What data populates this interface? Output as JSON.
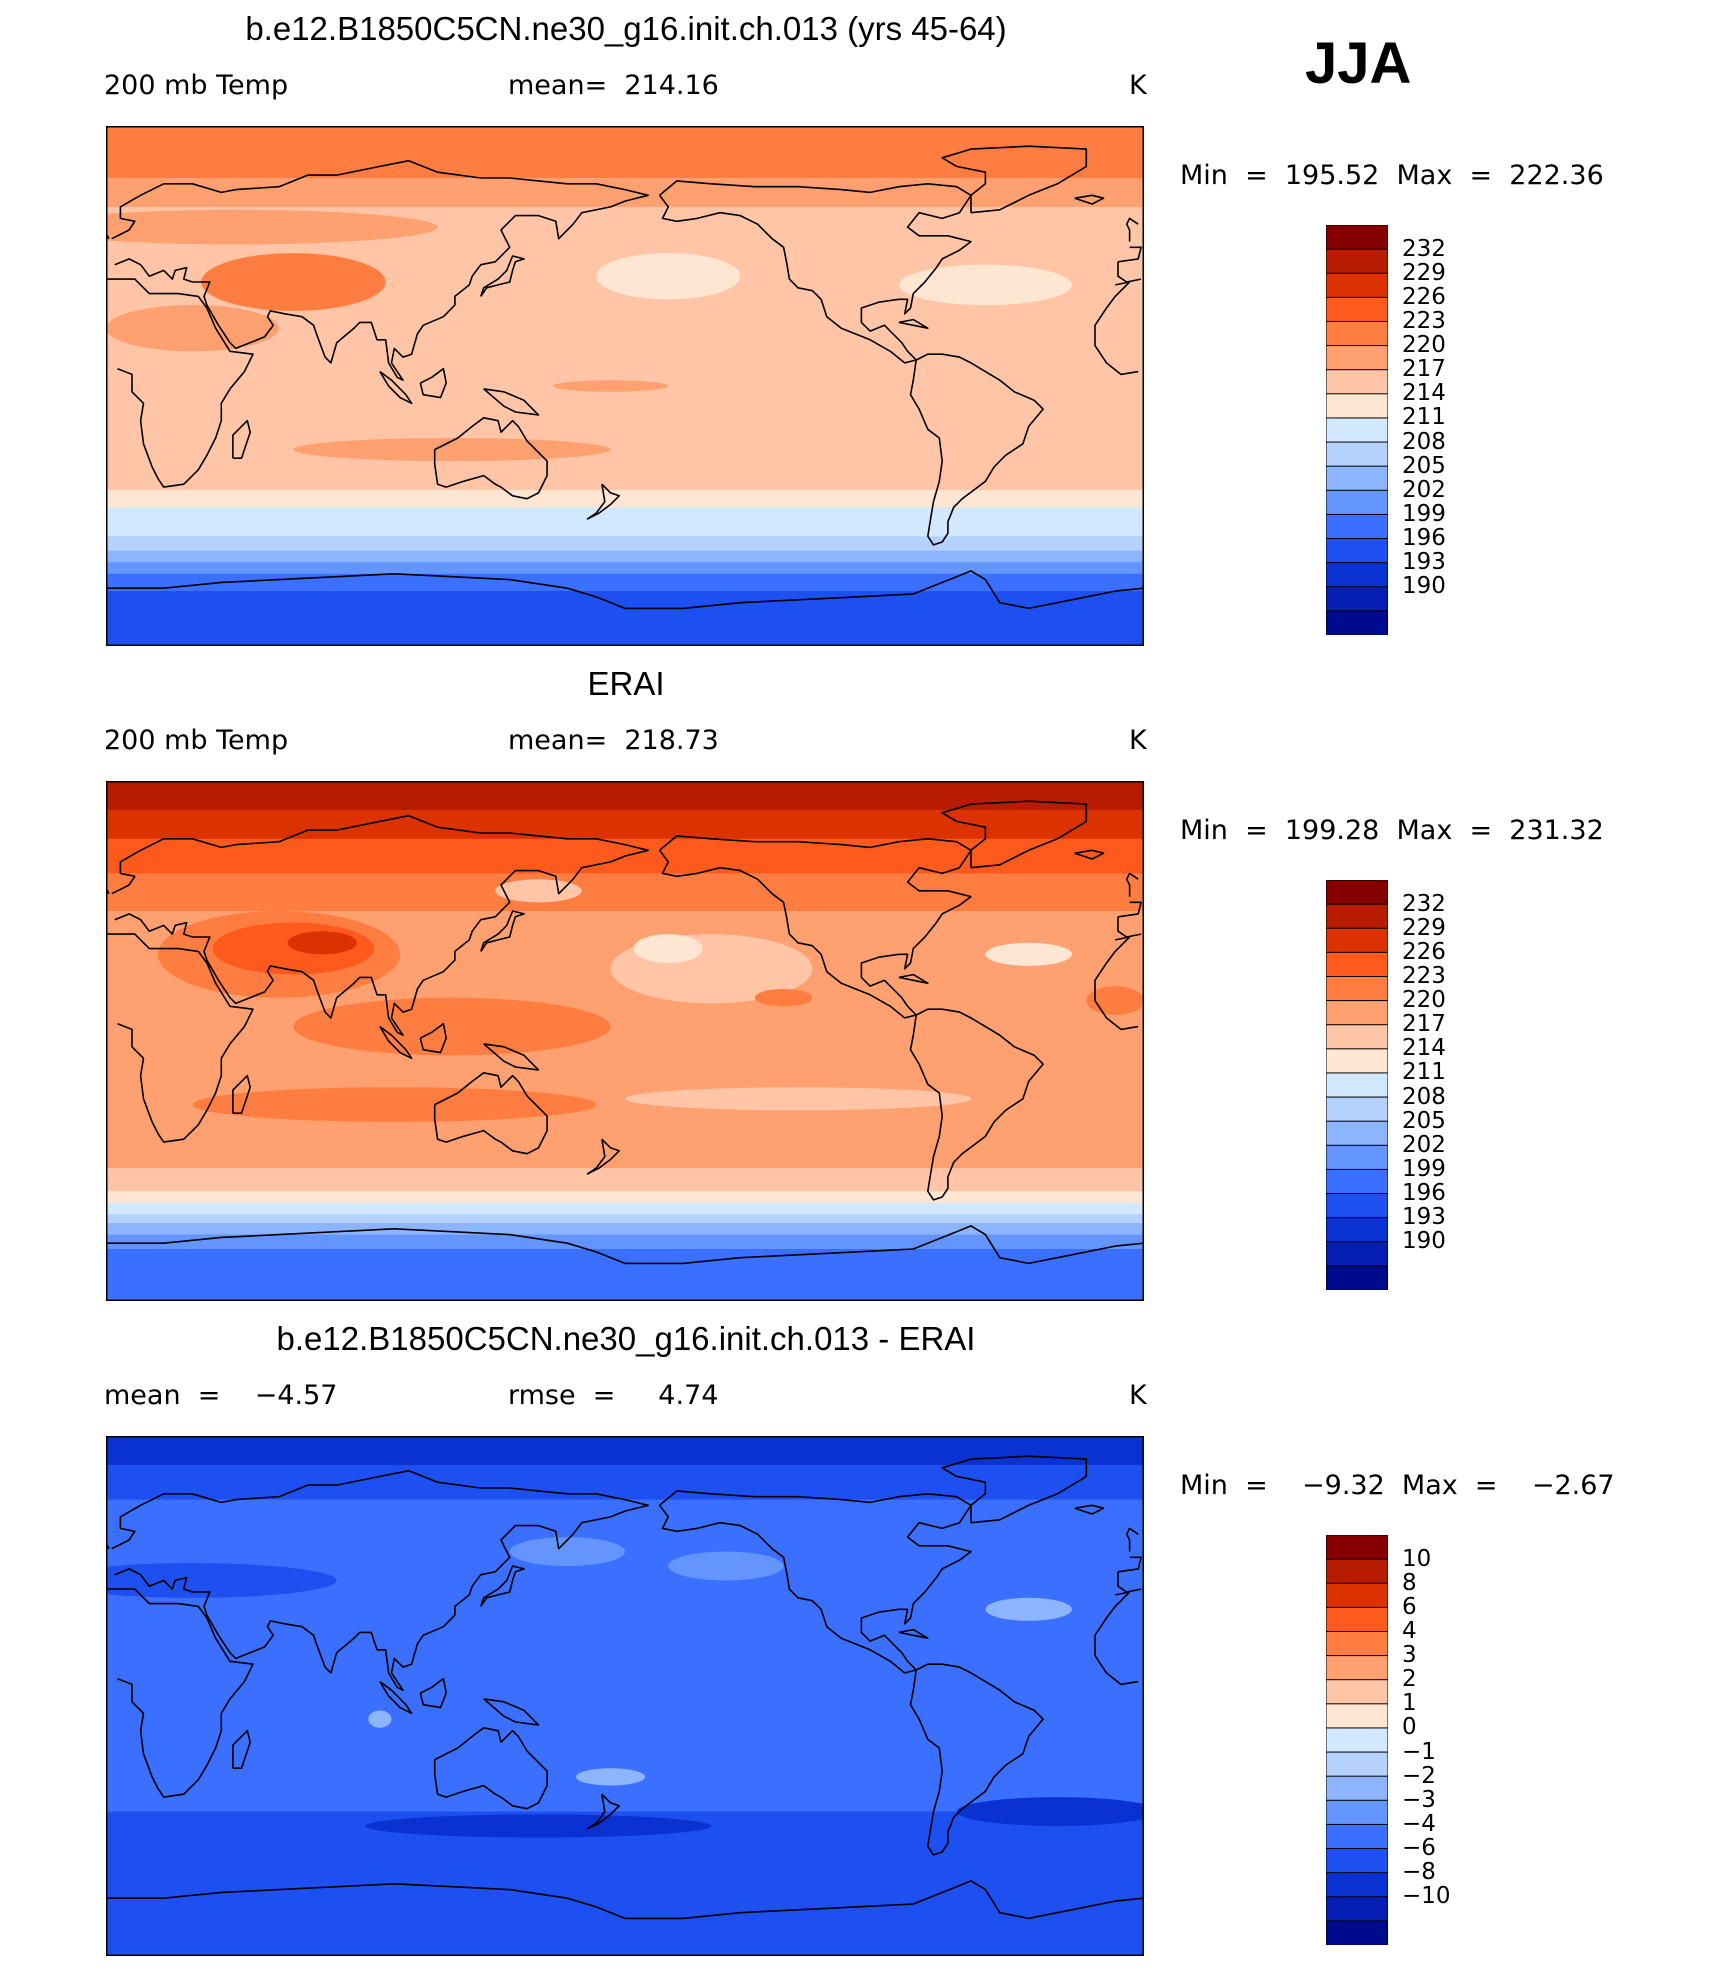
{
  "season": "JJA",
  "colorbars": {
    "temp": {
      "colors": [
        "#870000",
        "#b81c00",
        "#dc3200",
        "#ff5a1e",
        "#ff7d40",
        "#ffa070",
        "#ffc5a6",
        "#ffe6d2",
        "#d2e8ff",
        "#b5d2ff",
        "#8cb4ff",
        "#6495ff",
        "#3a6fff",
        "#1e4ff0",
        "#0a32d2",
        "#051eb4",
        "#000a8c"
      ],
      "labels": [
        "232",
        "229",
        "226",
        "223",
        "220",
        "217",
        "214",
        "211",
        "208",
        "205",
        "202",
        "199",
        "196",
        "193",
        "190"
      ]
    },
    "diff": {
      "colors": [
        "#870000",
        "#b81c00",
        "#dc3200",
        "#ff5a1e",
        "#ff7d40",
        "#ffa070",
        "#ffc5a6",
        "#ffe6d2",
        "#d2e8ff",
        "#b5d2ff",
        "#8cb4ff",
        "#6495ff",
        "#3a6fff",
        "#1e4ff0",
        "#0a32d2",
        "#051eb4",
        "#000a8c"
      ],
      "labels": [
        "10",
        "8",
        "6",
        "4",
        "3",
        "2",
        "1",
        "0",
        "−1",
        "−2",
        "−3",
        "−4",
        "−6",
        "−8",
        "−10"
      ]
    }
  },
  "panels": [
    {
      "title": "b.e12.B1850C5CN.ne30_g16.init.ch.013 (yrs 45-64)",
      "left_label": "200 mb Temp",
      "mid_label": "mean=  214.16",
      "unit": "K",
      "minmax": "Min  =  195.52  Max  =  222.36",
      "colorbar": "temp",
      "bands": [
        {
          "lat": 90,
          "color": "#ff7d40"
        },
        {
          "lat": 72,
          "color": "#ffa070"
        },
        {
          "lat": 62,
          "color": "#ffc5a6"
        },
        {
          "lat": -27,
          "color": "#ffc5a6"
        },
        {
          "lat": -36,
          "color": "#ffe6d2"
        },
        {
          "lat": -42,
          "color": "#d2e8ff"
        },
        {
          "lat": -52,
          "color": "#b5d2ff"
        },
        {
          "lat": -57,
          "color": "#8cb4ff"
        },
        {
          "lat": -61,
          "color": "#6495ff"
        },
        {
          "lat": -65,
          "color": "#3a6fff"
        },
        {
          "lat": -71,
          "color": "#1e4ff0"
        },
        {
          "lat": -90,
          "color": "#1e4ff0"
        }
      ],
      "blobs": [
        {
          "lon": 65,
          "lat": 36,
          "rlon": 32,
          "rlat": 10,
          "color": "#ff7d40"
        },
        {
          "lon": 45,
          "lat": 55,
          "rlon": 70,
          "rlat": 6,
          "color": "#ffa070"
        },
        {
          "lon": 195,
          "lat": 38,
          "rlon": 25,
          "rlat": 8,
          "color": "#ffe6d2"
        },
        {
          "lon": 305,
          "lat": 35,
          "rlon": 30,
          "rlat": 7,
          "color": "#ffe6d2"
        },
        {
          "lon": 120,
          "lat": -22,
          "rlon": 55,
          "rlat": 4,
          "color": "#ffa070"
        },
        {
          "lon": 175,
          "lat": 0,
          "rlon": 20,
          "rlat": 2,
          "color": "#ffa070"
        },
        {
          "lon": 30,
          "lat": 20,
          "rlon": 30,
          "rlat": 8,
          "color": "#ffa070"
        }
      ]
    },
    {
      "title": "ERAI",
      "left_label": "200 mb Temp",
      "mid_label": "mean=  218.73",
      "unit": "K",
      "minmax": "Min  =  199.28  Max  =  231.32",
      "colorbar": "temp",
      "bands": [
        {
          "lat": 90,
          "color": "#b81c00"
        },
        {
          "lat": 80,
          "color": "#dc3200"
        },
        {
          "lat": 70,
          "color": "#ff5a1e"
        },
        {
          "lat": 58,
          "color": "#ff7d40"
        },
        {
          "lat": 45,
          "color": "#ffa070"
        },
        {
          "lat": -40,
          "color": "#ffa070"
        },
        {
          "lat": -44,
          "color": "#ffc5a6"
        },
        {
          "lat": -52,
          "color": "#ffe6d2"
        },
        {
          "lat": -56,
          "color": "#d2e8ff"
        },
        {
          "lat": -60,
          "color": "#b5d2ff"
        },
        {
          "lat": -63,
          "color": "#8cb4ff"
        },
        {
          "lat": -67,
          "color": "#6495ff"
        },
        {
          "lat": -72,
          "color": "#3a6fff"
        },
        {
          "lat": -90,
          "color": "#3a6fff"
        }
      ],
      "blobs": [
        {
          "lon": 60,
          "lat": 30,
          "rlon": 42,
          "rlat": 15,
          "color": "#ff7d40"
        },
        {
          "lon": 65,
          "lat": 32,
          "rlon": 28,
          "rlat": 9,
          "color": "#ff5a1e"
        },
        {
          "lon": 75,
          "lat": 34,
          "rlon": 12,
          "rlat": 4,
          "color": "#dc3200"
        },
        {
          "lon": 120,
          "lat": 5,
          "rlon": 55,
          "rlat": 10,
          "color": "#ff7d40"
        },
        {
          "lon": 100,
          "lat": -22,
          "rlon": 70,
          "rlat": 6,
          "color": "#ff7d40"
        },
        {
          "lon": 210,
          "lat": 25,
          "rlon": 35,
          "rlat": 12,
          "color": "#ffc5a6"
        },
        {
          "lon": 195,
          "lat": 32,
          "rlon": 12,
          "rlat": 5,
          "color": "#ffe6d2"
        },
        {
          "lon": 320,
          "lat": 30,
          "rlon": 15,
          "rlat": 4,
          "color": "#ffe6d2"
        },
        {
          "lon": 150,
          "lat": 52,
          "rlon": 15,
          "rlat": 4,
          "color": "#ffc5a6"
        },
        {
          "lon": 235,
          "lat": 15,
          "rlon": 10,
          "rlat": 3,
          "color": "#ff7d40"
        },
        {
          "lon": 350,
          "lat": 14,
          "rlon": 10,
          "rlat": 5,
          "color": "#ff7d40"
        },
        {
          "lon": 240,
          "lat": -20,
          "rlon": 60,
          "rlat": 4,
          "color": "#ffc5a6"
        }
      ]
    },
    {
      "title": "b.e12.B1850C5CN.ne30_g16.init.ch.013 - ERAI",
      "left_label": "mean  =    −4.57",
      "mid_label": "rmse  =     4.74",
      "unit": "K",
      "minmax": "Min  =    −9.32  Max  =    −2.67",
      "colorbar": "diff",
      "bands": [
        {
          "lat": 90,
          "color": "#0a32d2"
        },
        {
          "lat": 80,
          "color": "#1e4ff0"
        },
        {
          "lat": 68,
          "color": "#3a6fff"
        },
        {
          "lat": -28,
          "color": "#3a6fff"
        },
        {
          "lat": -40,
          "color": "#1e4ff0"
        },
        {
          "lat": -70,
          "color": "#1e4ff0"
        },
        {
          "lat": -90,
          "color": "#0a32d2"
        }
      ],
      "blobs": [
        {
          "lon": 160,
          "lat": 50,
          "rlon": 20,
          "rlat": 5,
          "color": "#6495ff"
        },
        {
          "lon": 215,
          "lat": 45,
          "rlon": 20,
          "rlat": 5,
          "color": "#6495ff"
        },
        {
          "lon": 320,
          "lat": 30,
          "rlon": 15,
          "rlat": 4,
          "color": "#8cb4ff"
        },
        {
          "lon": 175,
          "lat": -28,
          "rlon": 12,
          "rlat": 3,
          "color": "#8cb4ff"
        },
        {
          "lon": 95,
          "lat": -8,
          "rlon": 4,
          "rlat": 3,
          "color": "#8cb4ff"
        },
        {
          "lon": 30,
          "lat": 40,
          "rlon": 50,
          "rlat": 6,
          "color": "#1e4ff0"
        },
        {
          "lon": 150,
          "lat": -45,
          "rlon": 60,
          "rlat": 4,
          "color": "#0a32d2"
        },
        {
          "lon": 330,
          "lat": -40,
          "rlon": 35,
          "rlat": 5,
          "color": "#0a32d2"
        }
      ]
    }
  ]
}
